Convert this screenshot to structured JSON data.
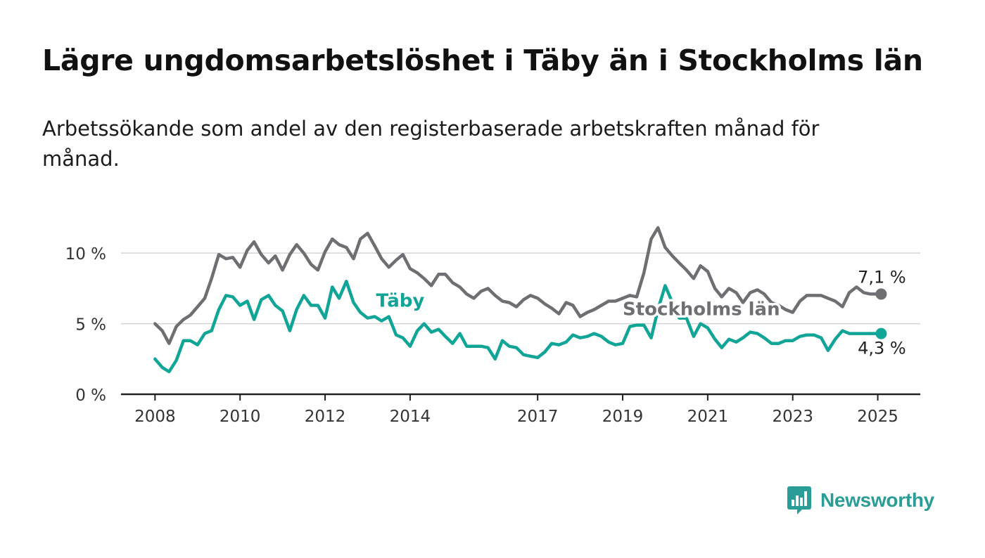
{
  "title": "Lägre ungdomsarbetslöshet i Täby än i Stockholms län",
  "subtitle": "Arbetssökande som andel av den registerbaserade arbetskraften månad för månad.",
  "brand": {
    "name": "Newsworthy",
    "color": "#2a9d96"
  },
  "chart_data": {
    "type": "line",
    "x": [
      2008,
      2008.17,
      2008.33,
      2008.5,
      2008.67,
      2008.83,
      2009,
      2009.17,
      2009.33,
      2009.5,
      2009.67,
      2009.83,
      2010,
      2010.17,
      2010.33,
      2010.5,
      2010.67,
      2010.83,
      2011,
      2011.17,
      2011.33,
      2011.5,
      2011.67,
      2011.83,
      2012,
      2012.17,
      2012.33,
      2012.5,
      2012.67,
      2012.83,
      2013,
      2013.17,
      2013.33,
      2013.5,
      2013.67,
      2013.83,
      2014,
      2014.17,
      2014.33,
      2014.5,
      2014.67,
      2014.83,
      2015,
      2015.17,
      2015.33,
      2015.5,
      2015.67,
      2015.83,
      2016,
      2016.17,
      2016.33,
      2016.5,
      2016.67,
      2016.83,
      2017,
      2017.17,
      2017.33,
      2017.5,
      2017.67,
      2017.83,
      2018,
      2018.17,
      2018.33,
      2018.5,
      2018.67,
      2018.83,
      2019,
      2019.17,
      2019.33,
      2019.5,
      2019.67,
      2019.83,
      2020,
      2020.17,
      2020.33,
      2020.5,
      2020.67,
      2020.83,
      2021,
      2021.17,
      2021.33,
      2021.5,
      2021.67,
      2021.83,
      2022,
      2022.17,
      2022.33,
      2022.5,
      2022.67,
      2022.83,
      2023,
      2023.17,
      2023.33,
      2023.5,
      2023.67,
      2023.83,
      2024,
      2024.17,
      2024.33,
      2024.5,
      2024.67,
      2024.83,
      2025,
      2025.08
    ],
    "series": [
      {
        "name": "Stockholms län",
        "color": "#6e6e73",
        "end_label": "7,1 %",
        "values": [
          5.0,
          4.5,
          3.6,
          4.8,
          5.3,
          5.6,
          6.2,
          6.8,
          8.2,
          9.9,
          9.6,
          9.7,
          9.0,
          10.2,
          10.8,
          9.9,
          9.3,
          9.8,
          8.8,
          9.9,
          10.6,
          10.0,
          9.2,
          8.8,
          10.1,
          11.0,
          10.6,
          10.4,
          9.6,
          11.0,
          11.4,
          10.5,
          9.6,
          9.0,
          9.5,
          9.9,
          8.9,
          8.6,
          8.2,
          7.7,
          8.5,
          8.5,
          7.9,
          7.6,
          7.1,
          6.8,
          7.3,
          7.5,
          7.0,
          6.6,
          6.5,
          6.2,
          6.7,
          7.0,
          6.8,
          6.4,
          6.1,
          5.7,
          6.5,
          6.3,
          5.5,
          5.8,
          6.0,
          6.3,
          6.6,
          6.6,
          6.8,
          7.0,
          6.9,
          8.6,
          11.0,
          11.8,
          10.4,
          9.8,
          9.3,
          8.8,
          8.2,
          9.1,
          8.7,
          7.5,
          6.9,
          7.5,
          7.2,
          6.5,
          7.2,
          7.4,
          7.1,
          6.5,
          6.3,
          6.0,
          5.8,
          6.6,
          7.0,
          7.0,
          7.0,
          6.8,
          6.6,
          6.2,
          7.2,
          7.6,
          7.2,
          7.1,
          7.1,
          7.1
        ]
      },
      {
        "name": "Täby",
        "color": "#10a596",
        "end_label": "4,3 %",
        "values": [
          2.5,
          1.9,
          1.6,
          2.4,
          3.8,
          3.8,
          3.5,
          4.3,
          4.5,
          6.0,
          7.0,
          6.9,
          6.3,
          6.6,
          5.3,
          6.7,
          7.0,
          6.3,
          5.9,
          4.5,
          6.0,
          7.0,
          6.3,
          6.3,
          5.4,
          7.6,
          6.8,
          8.0,
          6.5,
          5.8,
          5.4,
          5.5,
          5.2,
          5.5,
          4.2,
          4.0,
          3.4,
          4.5,
          5.0,
          4.4,
          4.6,
          4.1,
          3.6,
          4.3,
          3.4,
          3.4,
          3.4,
          3.3,
          2.5,
          3.8,
          3.4,
          3.3,
          2.8,
          2.7,
          2.6,
          3.0,
          3.6,
          3.5,
          3.7,
          4.2,
          4.0,
          4.1,
          4.3,
          4.1,
          3.7,
          3.5,
          3.6,
          4.8,
          4.9,
          4.9,
          4.0,
          6.0,
          7.7,
          6.5,
          5.4,
          5.4,
          4.1,
          5.0,
          4.7,
          3.9,
          3.3,
          3.9,
          3.7,
          4.0,
          4.4,
          4.3,
          4.0,
          3.6,
          3.6,
          3.8,
          3.8,
          4.1,
          4.2,
          4.2,
          4.0,
          3.1,
          3.9,
          4.5,
          4.3,
          4.3,
          4.3,
          4.3,
          4.3,
          4.3
        ]
      }
    ],
    "inline_labels": [
      {
        "series": "Täby",
        "text": "Täby",
        "x": 2013.2,
        "y": 6.2
      },
      {
        "series": "Stockholms län",
        "text": "Stockholms län",
        "x": 2019.0,
        "y": 5.6
      }
    ],
    "y_ticks": [
      0,
      5,
      10
    ],
    "y_tick_labels": [
      "0 %",
      "5 %",
      "10 %"
    ],
    "x_ticks": [
      2008,
      2010,
      2012,
      2014,
      2017,
      2019,
      2021,
      2023,
      2025
    ],
    "x_tick_labels": [
      "2008",
      "2010",
      "2012",
      "2014",
      "2017",
      "2019",
      "2021",
      "2023",
      "2025"
    ],
    "xlim": [
      2007.2,
      2026.0
    ],
    "ylim": [
      0,
      12
    ],
    "grid": "horizontal",
    "legend": "none",
    "xlabel": "",
    "ylabel": ""
  }
}
